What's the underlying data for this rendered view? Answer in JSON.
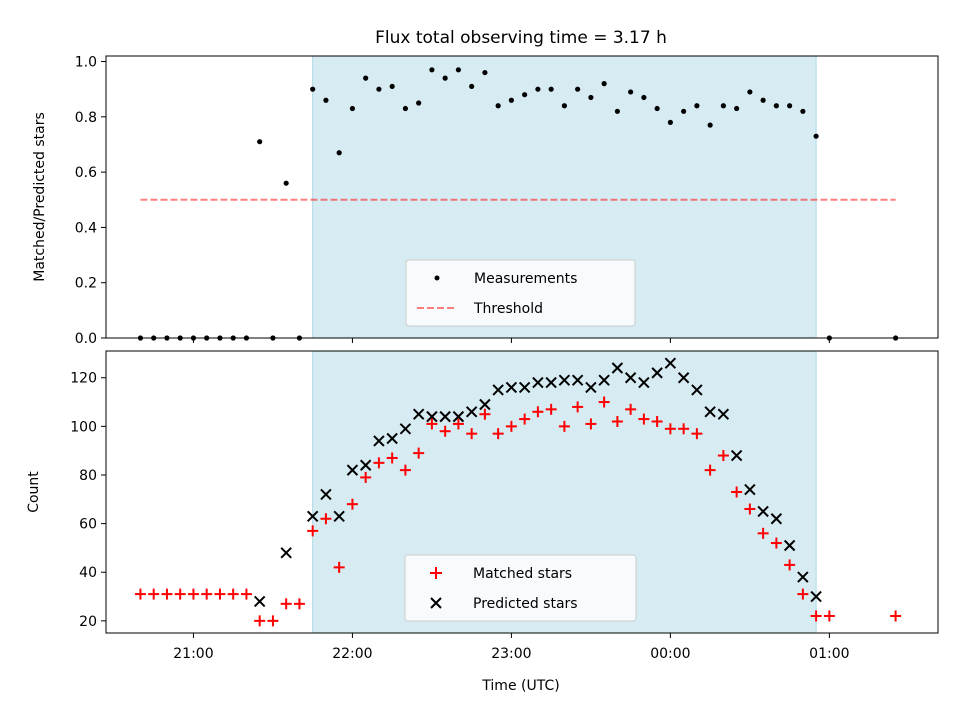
{
  "figure": {
    "title": "Flux total observing time = 3.17 h",
    "xlabel": "Time (UTC)",
    "colors": {
      "observing_window": "#add8e6",
      "measurements": "#000000",
      "threshold": "#ff0000",
      "matched": "#ff0000",
      "predicted": "#000000"
    }
  },
  "chart_data": [
    {
      "type": "scatter",
      "id": "ratio",
      "title": "Flux total observing time = 3.17 h",
      "xlabel": "",
      "ylabel": "Matched/Predicted stars",
      "xlim": [
        "20:27",
        "01:41"
      ],
      "ylim": [
        0.0,
        1.02
      ],
      "yticks": [
        0.0,
        0.2,
        0.4,
        0.6,
        0.8,
        1.0
      ],
      "ytick_labels": [
        "0.0",
        "0.2",
        "0.4",
        "0.6",
        "0.8",
        "1.0"
      ],
      "xticks": [
        "21:00",
        "22:00",
        "23:00",
        "00:00",
        "01:00"
      ],
      "xtick_labels_shown": false,
      "shaded_span": [
        "21:45",
        "00:55"
      ],
      "legend": {
        "position": "lower center",
        "entries": [
          "Measurements",
          "Threshold"
        ]
      },
      "threshold": {
        "name": "Threshold",
        "value": 0.5,
        "x_range": [
          "20:40",
          "01:25"
        ]
      },
      "series": [
        {
          "name": "Measurements",
          "marker": "dot",
          "x": [
            "20:40",
            "20:45",
            "20:50",
            "20:55",
            "21:00",
            "21:05",
            "21:10",
            "21:15",
            "21:20",
            "21:25",
            "21:30",
            "21:35",
            "21:40",
            "21:45",
            "21:50",
            "21:55",
            "22:00",
            "22:05",
            "22:10",
            "22:15",
            "22:20",
            "22:25",
            "22:30",
            "22:35",
            "22:40",
            "22:45",
            "22:50",
            "22:55",
            "23:00",
            "23:05",
            "23:10",
            "23:15",
            "23:20",
            "23:25",
            "23:30",
            "23:35",
            "23:40",
            "23:45",
            "23:50",
            "23:55",
            "00:00",
            "00:05",
            "00:10",
            "00:15",
            "00:20",
            "00:25",
            "00:30",
            "00:35",
            "00:40",
            "00:45",
            "00:50",
            "00:55",
            "01:00",
            "01:25"
          ],
          "values": [
            0.0,
            0.0,
            0.0,
            0.0,
            0.0,
            0.0,
            0.0,
            0.0,
            0.0,
            0.71,
            0.0,
            0.56,
            0.0,
            0.9,
            0.86,
            0.67,
            0.83,
            0.94,
            0.9,
            0.91,
            0.83,
            0.85,
            0.97,
            0.94,
            0.97,
            0.91,
            0.96,
            0.84,
            0.86,
            0.88,
            0.9,
            0.9,
            0.84,
            0.9,
            0.87,
            0.92,
            0.82,
            0.89,
            0.87,
            0.83,
            0.78,
            0.82,
            0.84,
            0.77,
            0.84,
            0.83,
            0.89,
            0.86,
            0.84,
            0.84,
            0.82,
            0.73,
            0.0,
            0.0
          ]
        }
      ]
    },
    {
      "type": "scatter",
      "id": "counts",
      "title": "",
      "xlabel": "Time (UTC)",
      "ylabel": "Count",
      "xlim": [
        "20:27",
        "01:41"
      ],
      "ylim": [
        15,
        131
      ],
      "yticks": [
        20,
        40,
        60,
        80,
        100,
        120
      ],
      "ytick_labels": [
        "20",
        "40",
        "60",
        "80",
        "100",
        "120"
      ],
      "xticks": [
        "21:00",
        "22:00",
        "23:00",
        "00:00",
        "01:00"
      ],
      "xtick_labels": [
        "21:00",
        "22:00",
        "23:00",
        "00:00",
        "01:00"
      ],
      "shaded_span": [
        "21:45",
        "00:55"
      ],
      "legend": {
        "position": "lower center",
        "entries": [
          "Matched stars",
          "Predicted stars"
        ]
      },
      "series": [
        {
          "name": "Matched stars",
          "marker": "plus",
          "x": [
            "20:40",
            "20:45",
            "20:50",
            "20:55",
            "21:00",
            "21:05",
            "21:10",
            "21:15",
            "21:20",
            "21:25",
            "21:30",
            "21:35",
            "21:40",
            "21:45",
            "21:50",
            "21:55",
            "22:00",
            "22:05",
            "22:10",
            "22:15",
            "22:20",
            "22:25",
            "22:30",
            "22:35",
            "22:40",
            "22:45",
            "22:50",
            "22:55",
            "23:00",
            "23:05",
            "23:10",
            "23:15",
            "23:20",
            "23:25",
            "23:30",
            "23:35",
            "23:40",
            "23:45",
            "23:50",
            "23:55",
            "00:00",
            "00:05",
            "00:10",
            "00:15",
            "00:20",
            "00:25",
            "00:30",
            "00:35",
            "00:40",
            "00:45",
            "00:50",
            "00:55",
            "01:00",
            "01:25"
          ],
          "values": [
            31,
            31,
            31,
            31,
            31,
            31,
            31,
            31,
            31,
            20,
            20,
            27,
            27,
            57,
            62,
            42,
            68,
            79,
            85,
            87,
            82,
            89,
            101,
            98,
            101,
            97,
            105,
            97,
            100,
            103,
            106,
            107,
            100,
            108,
            101,
            110,
            102,
            107,
            103,
            102,
            99,
            99,
            97,
            82,
            88,
            73,
            66,
            56,
            52,
            43,
            31,
            22,
            22,
            22
          ]
        },
        {
          "name": "Predicted stars",
          "marker": "x",
          "x": [
            "21:25",
            "21:35",
            "21:45",
            "21:50",
            "21:55",
            "22:00",
            "22:05",
            "22:10",
            "22:15",
            "22:20",
            "22:25",
            "22:30",
            "22:35",
            "22:40",
            "22:45",
            "22:50",
            "22:55",
            "23:00",
            "23:05",
            "23:10",
            "23:15",
            "23:20",
            "23:25",
            "23:30",
            "23:35",
            "23:40",
            "23:45",
            "23:50",
            "23:55",
            "00:00",
            "00:05",
            "00:10",
            "00:15",
            "00:20",
            "00:25",
            "00:30",
            "00:35",
            "00:40",
            "00:45",
            "00:50",
            "00:55"
          ],
          "values": [
            28,
            48,
            63,
            72,
            63,
            82,
            84,
            94,
            95,
            99,
            105,
            104,
            104,
            104,
            106,
            109,
            115,
            116,
            116,
            118,
            118,
            119,
            119,
            116,
            119,
            124,
            120,
            118,
            122,
            126,
            120,
            115,
            106,
            105,
            88,
            74,
            65,
            62,
            51,
            38,
            30
          ]
        }
      ]
    }
  ]
}
